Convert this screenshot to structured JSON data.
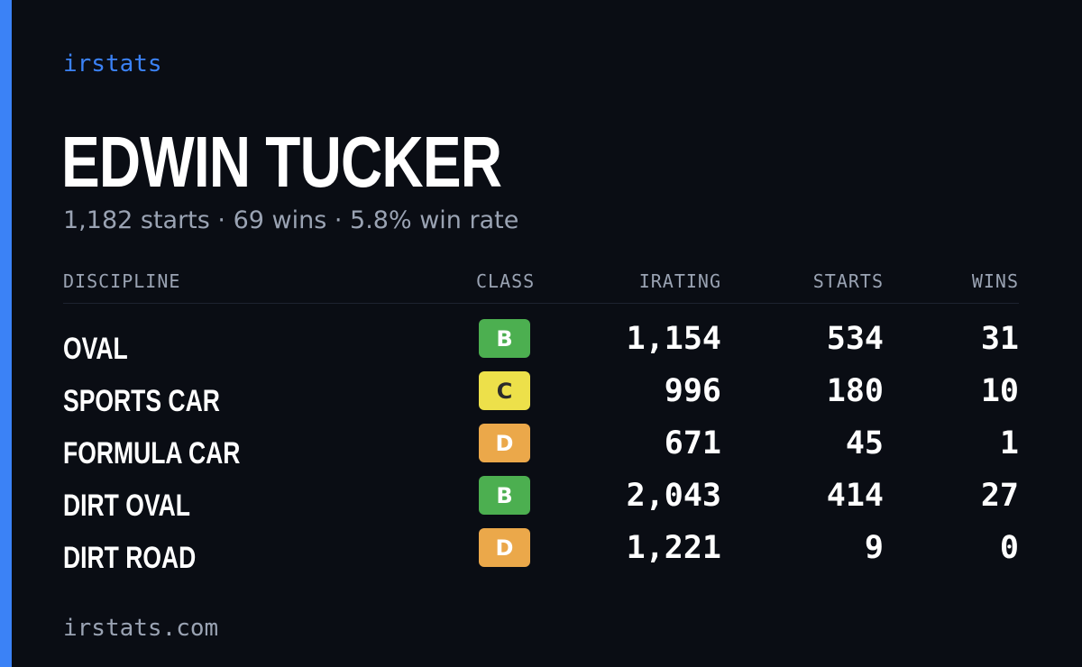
{
  "brand": "irstats",
  "driver": {
    "name": "EDWIN TUCKER",
    "summary": "1,182 starts · 69 wins · 5.8% win rate"
  },
  "table": {
    "headers": {
      "discipline": "DISCIPLINE",
      "class": "CLASS",
      "irating": "IRATING",
      "starts": "STARTS",
      "wins": "WINS"
    },
    "rows": [
      {
        "discipline": "OVAL",
        "class": "B",
        "irating": "1,154",
        "starts": "534",
        "wins": "31"
      },
      {
        "discipline": "SPORTS CAR",
        "class": "C",
        "irating": "996",
        "starts": "180",
        "wins": "10"
      },
      {
        "discipline": "FORMULA CAR",
        "class": "D",
        "irating": "671",
        "starts": "45",
        "wins": "1"
      },
      {
        "discipline": "DIRT OVAL",
        "class": "B",
        "irating": "2,043",
        "starts": "414",
        "wins": "27"
      },
      {
        "discipline": "DIRT ROAD",
        "class": "D",
        "irating": "1,221",
        "starts": "9",
        "wins": "0"
      }
    ]
  },
  "class_colors": {
    "B": {
      "bg": "#4caf50",
      "fg": "#ffffff"
    },
    "C": {
      "bg": "#ede04a",
      "fg": "#2b2b2b"
    },
    "D": {
      "bg": "#eba84a",
      "fg": "#ffffff"
    }
  },
  "colors": {
    "accent": "#3b82f6",
    "background": "#0a0d14",
    "muted_text": "#9aa3b3"
  },
  "footer": "irstats.com"
}
